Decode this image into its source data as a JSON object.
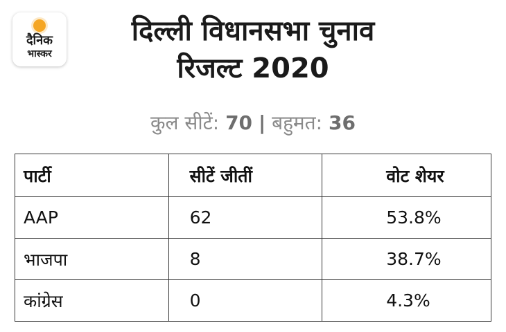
{
  "logo": {
    "line1": "दैनिक",
    "line2": "भास्कर",
    "accent_color": "#f5a623"
  },
  "title": {
    "line1": "दिल्ली विधानसभा चुनाव",
    "line2": "रिजल्ट 2020"
  },
  "summary": {
    "total_label": "कुल सीटें:",
    "total_value": "70",
    "separator": "|",
    "majority_label": "बहुमत:",
    "majority_value": "36"
  },
  "table": {
    "headers": [
      "पार्टी",
      "सीटें जीतीं",
      "वोट शेयर"
    ],
    "rows": [
      {
        "party": "AAP",
        "seats": "62",
        "vote_share": "53.8%"
      },
      {
        "party": "भाजपा",
        "seats": "8",
        "vote_share": "38.7%"
      },
      {
        "party": "कांग्रेस",
        "seats": "0",
        "vote_share": "4.3%"
      }
    ]
  }
}
